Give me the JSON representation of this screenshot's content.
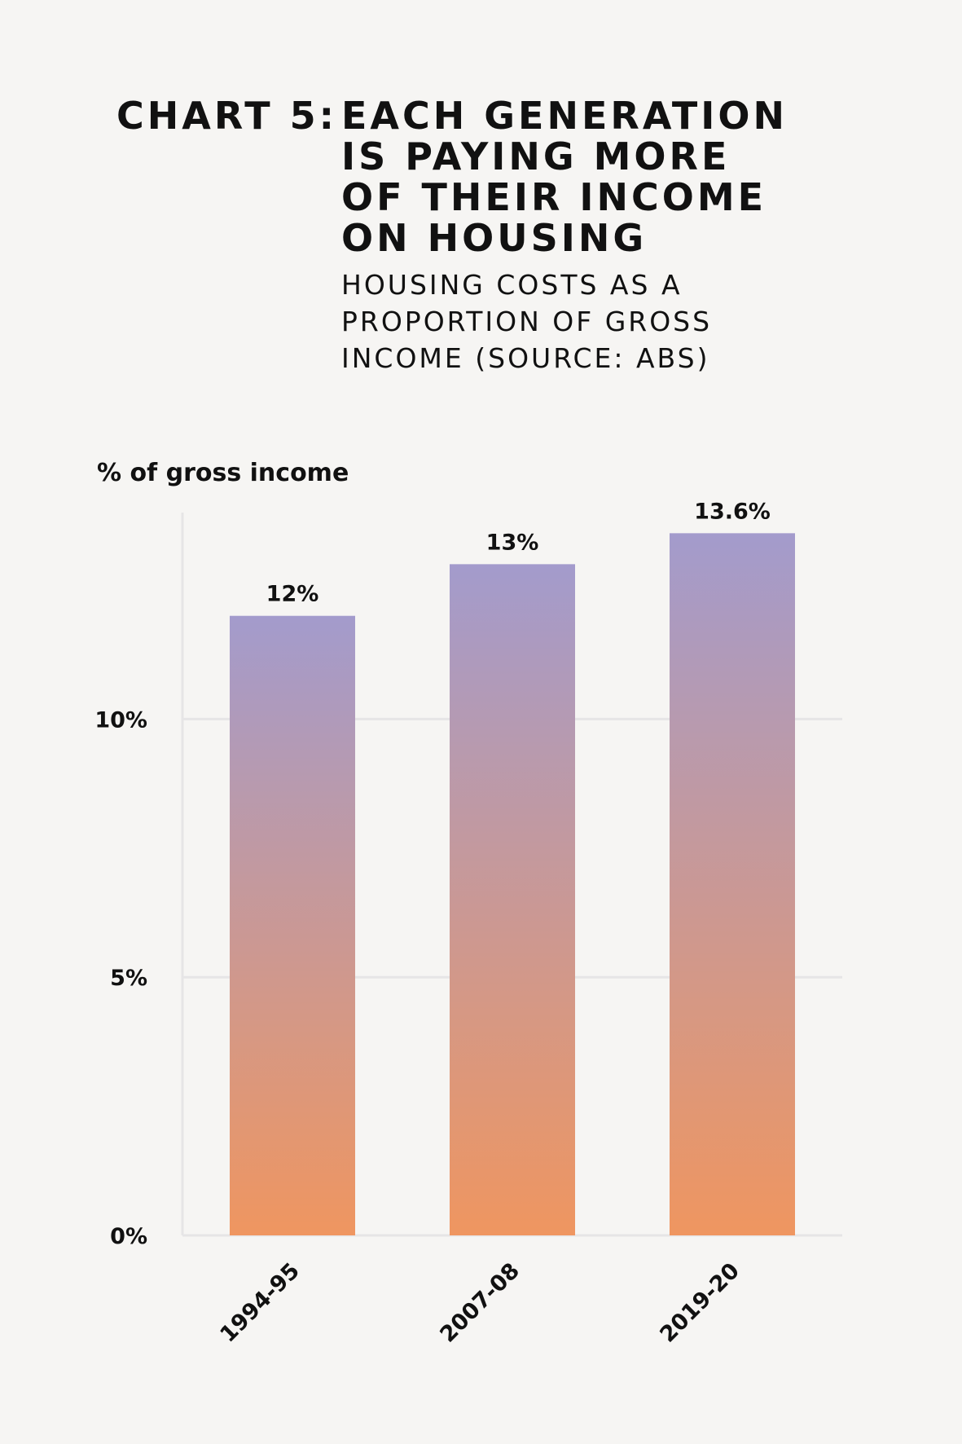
{
  "chart_data": {
    "type": "bar",
    "title_prefix": "CHART 5:",
    "title": [
      "EACH GENERATION",
      "IS PAYING MORE",
      "OF THEIR INCOME",
      "ON HOUSING"
    ],
    "subtitle": [
      "HOUSING COSTS AS A",
      "PROPORTION OF GROSS",
      "INCOME (SOURCE: ABS)"
    ],
    "y_label": "% of gross income",
    "categories": [
      "1994-95",
      "2007-08",
      "2019-20"
    ],
    "values": [
      12,
      13,
      13.6
    ],
    "value_labels": [
      "12%",
      "13%",
      "13.6%"
    ],
    "color": {
      "top": "#a39bcc",
      "bottom": "#ef9660"
    },
    "ylim": [
      0,
      14
    ],
    "yticks": [
      {
        "value": 0,
        "label": "0%"
      },
      {
        "value": 5,
        "label": "5%"
      },
      {
        "value": 10,
        "label": "10%"
      }
    ],
    "grid": true
  }
}
